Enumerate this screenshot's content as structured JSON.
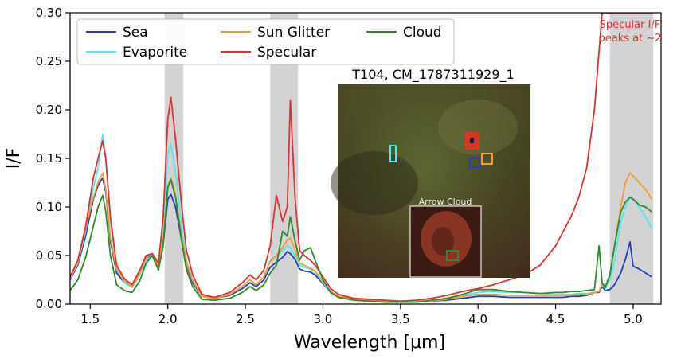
{
  "chart_data": {
    "type": "line",
    "title": "",
    "xlabel": "Wavelength [μm]",
    "ylabel": "I/F",
    "xlim": [
      1.37,
      5.18
    ],
    "ylim": [
      0.0,
      0.3
    ],
    "xticks": [
      "1.5",
      "2.0",
      "2.5",
      "3.0",
      "3.5",
      "4.0",
      "4.5",
      "5.0"
    ],
    "xtick_values": [
      1.5,
      2.0,
      2.5,
      3.0,
      3.5,
      4.0,
      4.5,
      5.0
    ],
    "yticks": [
      "0.00",
      "0.05",
      "0.10",
      "0.15",
      "0.20",
      "0.25",
      "0.30"
    ],
    "ytick_values": [
      0.0,
      0.05,
      0.1,
      0.15,
      0.2,
      0.25,
      0.3
    ],
    "grid": false,
    "legend_position": "top-left",
    "shaded_bands": [
      [
        1.98,
        2.1
      ],
      [
        2.66,
        2.84
      ],
      [
        4.85,
        5.13
      ]
    ],
    "shade_color": "#d3d3d3",
    "x": [
      1.37,
      1.42,
      1.47,
      1.52,
      1.55,
      1.58,
      1.6,
      1.63,
      1.67,
      1.72,
      1.77,
      1.82,
      1.86,
      1.9,
      1.94,
      1.97,
      2.0,
      2.02,
      2.05,
      2.09,
      2.12,
      2.16,
      2.22,
      2.3,
      2.4,
      2.48,
      2.53,
      2.57,
      2.62,
      2.66,
      2.7,
      2.74,
      2.77,
      2.79,
      2.82,
      2.85,
      2.88,
      2.92,
      2.95,
      3.0,
      3.05,
      3.1,
      3.2,
      3.3,
      3.4,
      3.5,
      3.6,
      3.7,
      3.8,
      3.9,
      4.0,
      4.1,
      4.2,
      4.3,
      4.4,
      4.5,
      4.55,
      4.6,
      4.65,
      4.7,
      4.75,
      4.78,
      4.8,
      4.82,
      4.85,
      4.88,
      4.92,
      4.95,
      4.98,
      5.0,
      5.04,
      5.08,
      5.12
    ],
    "series": [
      {
        "name": "Sea",
        "color": "#1f3fbf",
        "values": [
          0.025,
          0.04,
          0.07,
          0.108,
          0.122,
          0.13,
          0.115,
          0.065,
          0.032,
          0.022,
          0.018,
          0.032,
          0.048,
          0.05,
          0.036,
          0.062,
          0.108,
          0.113,
          0.1,
          0.065,
          0.04,
          0.022,
          0.008,
          0.006,
          0.009,
          0.016,
          0.022,
          0.018,
          0.025,
          0.038,
          0.043,
          0.048,
          0.054,
          0.052,
          0.046,
          0.036,
          0.034,
          0.033,
          0.03,
          0.021,
          0.012,
          0.008,
          0.005,
          0.004,
          0.003,
          0.002,
          0.002,
          0.003,
          0.004,
          0.006,
          0.008,
          0.008,
          0.007,
          0.007,
          0.007,
          0.007,
          0.007,
          0.008,
          0.008,
          0.009,
          0.012,
          0.012,
          0.018,
          0.014,
          0.015,
          0.02,
          0.032,
          0.046,
          0.064,
          0.039,
          0.036,
          0.032,
          0.028
        ]
      },
      {
        "name": "Evaporite",
        "color": "#4de8f5",
        "values": [
          0.026,
          0.042,
          0.075,
          0.12,
          0.14,
          0.175,
          0.15,
          0.085,
          0.038,
          0.022,
          0.017,
          0.03,
          0.045,
          0.05,
          0.036,
          0.075,
          0.155,
          0.165,
          0.135,
          0.08,
          0.045,
          0.025,
          0.008,
          0.006,
          0.01,
          0.018,
          0.025,
          0.02,
          0.028,
          0.045,
          0.05,
          0.055,
          0.06,
          0.058,
          0.05,
          0.04,
          0.038,
          0.036,
          0.033,
          0.022,
          0.012,
          0.008,
          0.005,
          0.004,
          0.003,
          0.002,
          0.003,
          0.004,
          0.006,
          0.009,
          0.012,
          0.013,
          0.012,
          0.012,
          0.011,
          0.01,
          0.01,
          0.01,
          0.011,
          0.011,
          0.012,
          0.013,
          0.02,
          0.016,
          0.025,
          0.045,
          0.085,
          0.1,
          0.11,
          0.108,
          0.1,
          0.09,
          0.078
        ]
      },
      {
        "name": "Sun Glitter",
        "color": "#f39c2b",
        "values": [
          0.027,
          0.043,
          0.078,
          0.11,
          0.125,
          0.135,
          0.118,
          0.068,
          0.035,
          0.024,
          0.018,
          0.032,
          0.048,
          0.052,
          0.038,
          0.068,
          0.122,
          0.13,
          0.112,
          0.07,
          0.042,
          0.024,
          0.008,
          0.006,
          0.01,
          0.018,
          0.025,
          0.02,
          0.028,
          0.044,
          0.05,
          0.058,
          0.066,
          0.068,
          0.056,
          0.042,
          0.04,
          0.037,
          0.034,
          0.023,
          0.013,
          0.008,
          0.005,
          0.004,
          0.003,
          0.002,
          0.002,
          0.003,
          0.005,
          0.008,
          0.01,
          0.01,
          0.009,
          0.009,
          0.009,
          0.009,
          0.009,
          0.009,
          0.01,
          0.01,
          0.012,
          0.013,
          0.022,
          0.018,
          0.03,
          0.06,
          0.1,
          0.125,
          0.135,
          0.132,
          0.125,
          0.118,
          0.108
        ]
      },
      {
        "name": "Specular",
        "color": "#e03030",
        "values": [
          0.028,
          0.045,
          0.08,
          0.13,
          0.15,
          0.168,
          0.15,
          0.09,
          0.04,
          0.026,
          0.02,
          0.035,
          0.05,
          0.052,
          0.042,
          0.09,
          0.19,
          0.213,
          0.17,
          0.1,
          0.055,
          0.03,
          0.01,
          0.007,
          0.012,
          0.022,
          0.03,
          0.025,
          0.035,
          0.06,
          0.112,
          0.085,
          0.1,
          0.21,
          0.11,
          0.055,
          0.05,
          0.045,
          0.04,
          0.028,
          0.016,
          0.01,
          0.006,
          0.005,
          0.004,
          0.003,
          0.004,
          0.006,
          0.009,
          0.013,
          0.016,
          0.02,
          0.025,
          0.03,
          0.04,
          0.06,
          0.075,
          0.09,
          0.11,
          0.14,
          0.2,
          0.26,
          0.3,
          0.3,
          0.3,
          0.3,
          0.3,
          0.3,
          0.3,
          0.3,
          0.3,
          0.3,
          0.3
        ]
      },
      {
        "name": "Cloud",
        "color": "#2e8a2e",
        "values": [
          0.014,
          0.025,
          0.048,
          0.08,
          0.1,
          0.112,
          0.095,
          0.05,
          0.02,
          0.014,
          0.012,
          0.024,
          0.042,
          0.05,
          0.035,
          0.06,
          0.12,
          0.128,
          0.11,
          0.065,
          0.035,
          0.018,
          0.005,
          0.004,
          0.006,
          0.012,
          0.018,
          0.014,
          0.02,
          0.032,
          0.04,
          0.075,
          0.07,
          0.09,
          0.065,
          0.045,
          0.055,
          0.058,
          0.045,
          0.025,
          0.012,
          0.007,
          0.004,
          0.003,
          0.002,
          0.002,
          0.002,
          0.004,
          0.006,
          0.01,
          0.015,
          0.015,
          0.013,
          0.012,
          0.011,
          0.012,
          0.012,
          0.013,
          0.013,
          0.014,
          0.015,
          0.06,
          0.022,
          0.017,
          0.03,
          0.06,
          0.095,
          0.105,
          0.11,
          0.108,
          0.102,
          0.1,
          0.095
        ]
      }
    ],
    "inset": {
      "title": "T104, CM_1787311929_1",
      "sub_label": "Arrow Cloud"
    },
    "annotation": {
      "text_lines": [
        "Specular I/F",
        "peaks at ~2"
      ],
      "color": "#e03030"
    }
  }
}
